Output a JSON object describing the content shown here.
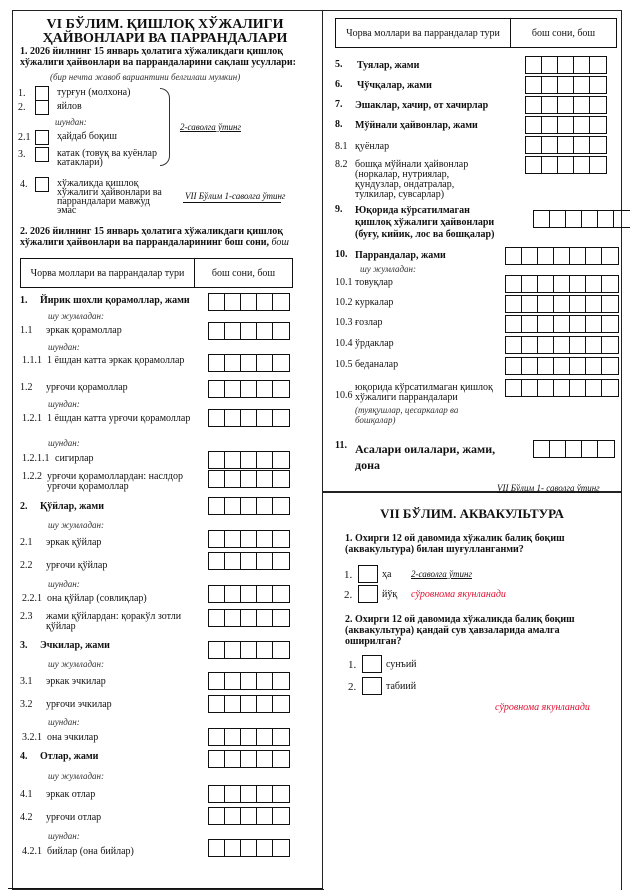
{
  "section6": {
    "title_line1": "VI БЎЛИМ. ҚИШЛОҚ ХЎЖАЛИГИ",
    "title_line2": "ҲАЙВОНЛАРИ ВА ПАРРАНДАЛАРИ",
    "q1": {
      "text_line1": "1. 2026 йилнинг 15 январь ҳолатига хўжаликдаги қишлоқ",
      "text_line2": "хўжалиги ҳайвонлари ва паррандаларини сақлаш усуллари:",
      "hint": "(бир нечта жавоб вариантини белгилаш мумкин)",
      "options": [
        {
          "num": "1.",
          "label": "турғун (молхона)"
        },
        {
          "num": "2.",
          "label": "яйлов"
        },
        {
          "num": "2.1",
          "label": "ҳайдаб боқиш"
        },
        {
          "num": "3.",
          "label": "катак (товуқ ва куёнлар катаклари)"
        },
        {
          "num": "4.",
          "label": "хўжаликда қишлоқ хўжалиги ҳайвонлари ва паррандалари мавжуд эмас"
        }
      ],
      "sub_label": "шундан:",
      "goto_q2": "2-саволга ўтинг",
      "goto_vii": "VII Бўлим 1-саволга ўтинг"
    },
    "q2": {
      "text_line1": "2. 2026 йилнинг 15 январь ҳолатига хўжаликдаги қишлоқ",
      "text_line2": "хўжалиги ҳайвонлари ва паррандаларининг бош сони,",
      "unit": "бош"
    },
    "table_header": {
      "col1": "Чорва моллари ва паррандалар тури",
      "col2": "бош сони, бош"
    },
    "rows": [
      {
        "num": "1.",
        "label": "Йирик шохли қорамоллар, жами",
        "bold": true
      },
      {
        "note": "шу жумладан:"
      },
      {
        "num": "1.1",
        "label": "эркак қорамоллар"
      },
      {
        "note": "шундан:"
      },
      {
        "num": "1.1.1",
        "label": "1 ёшдан катта эркак қорамоллар"
      },
      {
        "num": "1.2",
        "label": "урғочи қорамоллар"
      },
      {
        "note": "шундан:"
      },
      {
        "num": "1.2.1",
        "label": "1 ёшдан катта урғочи қорамоллар"
      },
      {
        "note": "шундан:"
      },
      {
        "num": "1.2.1.1",
        "label": "сигирлар"
      },
      {
        "num": "1.2.2",
        "label": "урғочи қорамоллардан: наслдор урғочи қорамоллар"
      },
      {
        "num": "2.",
        "label": "Қўйлар, жами",
        "bold": true
      },
      {
        "note": "шу жумладан:"
      },
      {
        "num": "2.1",
        "label": "эркак қўйлар"
      },
      {
        "num": "2.2",
        "label": "урғочи қўйлар"
      },
      {
        "note": "шундан:"
      },
      {
        "num": "2.2.1",
        "label": "она қўйлар (совлиқлар)"
      },
      {
        "num": "2.3",
        "label": "жами қўйлардан: қоракўл зотли қўйлар"
      },
      {
        "num": "3.",
        "label": "Эчкилар, жами",
        "bold": true
      },
      {
        "note": "шу жумладан:"
      },
      {
        "num": "3.1",
        "label": "эркак эчкилар"
      },
      {
        "num": "3.2",
        "label": "урғочи эчкилар"
      },
      {
        "note": "шундан:"
      },
      {
        "num": "3.2.1",
        "label": "она эчкилар"
      },
      {
        "num": "4.",
        "label": "Отлар, жами",
        "bold": true
      },
      {
        "note": "шу жумладан:"
      },
      {
        "num": "4.1",
        "label": "эркак отлар"
      },
      {
        "num": "4.2",
        "label": "урғочи отлар"
      },
      {
        "note": "шундан:"
      },
      {
        "num": "4.2.1",
        "label": "бийлар (она бийлар)"
      }
    ],
    "rows_right": [
      {
        "num": "5.",
        "label": "Туялар, жами",
        "bold": true
      },
      {
        "num": "6.",
        "label": "Чўчқалар, жами",
        "bold": true
      },
      {
        "num": "7.",
        "label": "Эшаклар, хачир, от хачирлар",
        "bold": true
      },
      {
        "num": "8.",
        "label": "Мўйнали ҳайвонлар, жами",
        "bold": true
      },
      {
        "num": "8.1",
        "label": "қуёнлар"
      },
      {
        "num": "8.2",
        "label": "бошқа мўйнали ҳайвонлар (норкалар, нутриялар, қундузлар, ондатралар, тулкилар, сувсарлар)"
      },
      {
        "num": "9.",
        "label": "Юқорида кўрсатилмаган қишлоқ хўжалиги ҳайвонлари (буғу, кийик, лос ва бошқалар)",
        "bold": true
      },
      {
        "num": "10.",
        "label": "Паррандалар, жами",
        "bold": true
      },
      {
        "note": "шу жумладан:"
      },
      {
        "num": "10.1",
        "label": "товуқлар"
      },
      {
        "num": "10.2",
        "label": "куркалар"
      },
      {
        "num": "10.3",
        "label": "ғозлар"
      },
      {
        "num": "10.4",
        "label": "ўрдаклар"
      },
      {
        "num": "10.5",
        "label": "беданалар"
      },
      {
        "num": "10.6",
        "label": "юқорида кўрсатилмаган қишлоқ хўжалиги паррандалари",
        "note2": "(туяқушлар, цесаркалар ва бошқалар)"
      },
      {
        "num": "11.",
        "label": "Асалари оилалари, жами, дона",
        "bold": true
      }
    ],
    "goto_vii_right": "VII Бўлим 1- саволга ўтинг"
  },
  "section7": {
    "title": "VII БЎЛИМ. АКВАКУЛЬТУРА",
    "q1": {
      "text": "1. Охирги 12 ой давомида хўжалик балиқ боқиш (аквакультура) билан шуғулланганми?",
      "options": [
        {
          "num": "1.",
          "label": "ҳа",
          "note": "2-саволга ўтинг"
        },
        {
          "num": "2.",
          "label": "йўқ",
          "note": "сўровнома якунланади"
        }
      ]
    },
    "q2": {
      "text": "2. Охирги 12 ой давомида хўжаликда балиқ боқиш (аквакультура) қандай сув ҳавзаларида амалга оширилган?",
      "options": [
        {
          "num": "1.",
          "label": "сунъий"
        },
        {
          "num": "2.",
          "label": "табиий"
        }
      ]
    },
    "end_note": "сўровнома якунланади"
  },
  "colors": {
    "red_note": "#e01030"
  }
}
